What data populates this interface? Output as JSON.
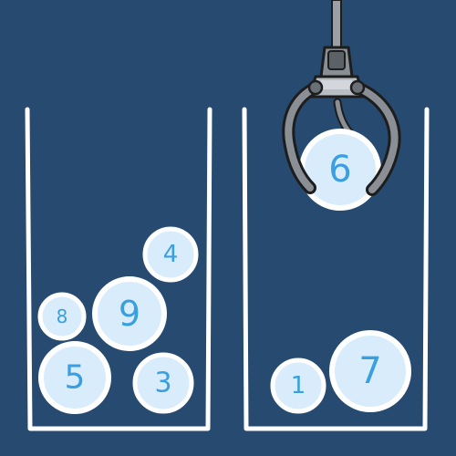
{
  "colors": {
    "background": "#264a70",
    "container": "#ffffff",
    "ball_fill": "#d8ecfb",
    "ball_rim": "#ffffff",
    "number": "#3a9fe0",
    "claw": "#8a8f96"
  },
  "containers": [
    {
      "name": "left-container",
      "balls": [
        {
          "label": "4"
        },
        {
          "label": "8"
        },
        {
          "label": "9"
        },
        {
          "label": "5"
        },
        {
          "label": "3"
        }
      ]
    },
    {
      "name": "right-container",
      "balls": [
        {
          "label": "1"
        },
        {
          "label": "7"
        }
      ]
    }
  ],
  "claw": {
    "icon": "claw-grabber-icon",
    "held_ball": {
      "label": "6"
    }
  }
}
